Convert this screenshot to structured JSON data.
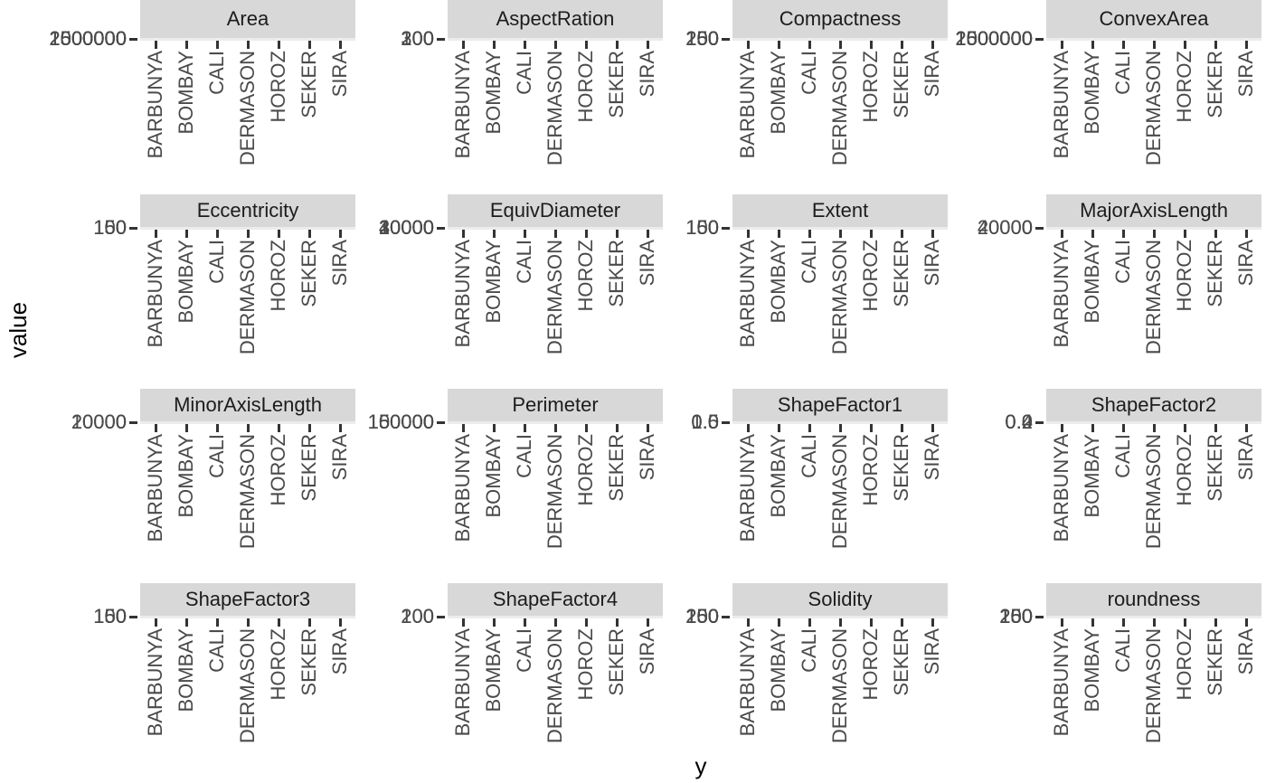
{
  "chart_data": {
    "type": "scatter",
    "description": "4x4 faceted plot (free scales); panels are collapsed to near-zero height so only facet strips, axis ticks and overlapping tick labels are visible; no data marks rendered",
    "title": "",
    "xlabel": "y",
    "ylabel": "value",
    "x_categories": [
      "BARBUNYA",
      "BOMBAY",
      "CALI",
      "DERMASON",
      "HOROZ",
      "SEKER",
      "SIRA"
    ],
    "legend": null,
    "grid": false,
    "facets": [
      {
        "title": "Area",
        "y_tick_labels": [
          "0",
          "500000",
          "1000000",
          "1500000",
          "2000000",
          "2500000"
        ]
      },
      {
        "title": "AspectRation",
        "y_tick_labels": [
          "0",
          "100",
          "200",
          "300"
        ]
      },
      {
        "title": "Compactness",
        "y_tick_labels": [
          "0",
          "50",
          "100",
          "150",
          "200",
          "250"
        ]
      },
      {
        "title": "ConvexArea",
        "y_tick_labels": [
          "0",
          "500000",
          "1000000",
          "1500000",
          "2000000",
          "2500000"
        ]
      },
      {
        "title": "Eccentricity",
        "y_tick_labels": [
          "0",
          "50",
          "100",
          "150"
        ]
      },
      {
        "title": "EquivDiameter",
        "y_tick_labels": [
          "0",
          "10000",
          "20000",
          "30000",
          "40000"
        ]
      },
      {
        "title": "Extent",
        "y_tick_labels": [
          "0",
          "50",
          "100",
          "150"
        ]
      },
      {
        "title": "MajorAxisLength",
        "y_tick_labels": [
          "0",
          "20000",
          "40000"
        ]
      },
      {
        "title": "MinorAxisLength",
        "y_tick_labels": [
          "0",
          "10000",
          "20000"
        ]
      },
      {
        "title": "Perimeter",
        "y_tick_labels": [
          "0",
          "50000",
          "100000",
          "150000"
        ]
      },
      {
        "title": "ShapeFactor1",
        "y_tick_labels": [
          "0.0",
          "0.5",
          "1.0"
        ]
      },
      {
        "title": "ShapeFactor2",
        "y_tick_labels": [
          "0.0",
          "0.2",
          "0.4"
        ]
      },
      {
        "title": "ShapeFactor3",
        "y_tick_labels": [
          "0",
          "50",
          "100",
          "150"
        ]
      },
      {
        "title": "ShapeFactor4",
        "y_tick_labels": [
          "0",
          "100",
          "200"
        ]
      },
      {
        "title": "Solidity",
        "y_tick_labels": [
          "0",
          "50",
          "100",
          "150",
          "200",
          "250"
        ]
      },
      {
        "title": "roundness",
        "y_tick_labels": [
          "0",
          "50",
          "100",
          "150",
          "200",
          "250"
        ]
      }
    ],
    "colors": {
      "background": "#ffffff",
      "strip_fill": "#d8d8d8",
      "strip_text": "#1c1c1c",
      "axis_text": "#4a4a4a",
      "tick_mark": "#333333",
      "axis_title": "#000000"
    }
  }
}
